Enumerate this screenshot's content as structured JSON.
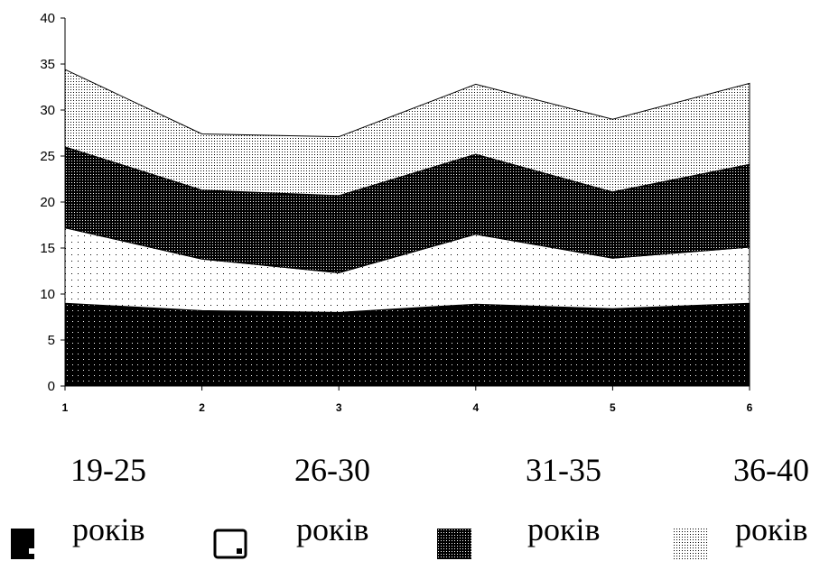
{
  "chart_data": {
    "type": "area",
    "stacked": true,
    "x": [
      "1",
      "2",
      "3",
      "4",
      "5",
      "6"
    ],
    "ylim": [
      0,
      40
    ],
    "yticks": [
      "0",
      "5",
      "10",
      "15",
      "20",
      "25",
      "30",
      "35",
      "40"
    ],
    "grid": false,
    "legend_position": "bottom",
    "series": [
      {
        "name": "19-25",
        "unit": "років",
        "values": [
          9.0,
          8.2,
          8.0,
          8.9,
          8.4,
          9.0
        ],
        "fill": "dark-dotted"
      },
      {
        "name": "26-30",
        "unit": "років",
        "values": [
          8.2,
          5.6,
          4.3,
          7.6,
          5.5,
          6.1
        ],
        "fill": "light-dotted"
      },
      {
        "name": "31-35",
        "unit": "років",
        "values": [
          8.8,
          7.5,
          8.4,
          8.7,
          7.2,
          9.0
        ],
        "fill": "dark-checker"
      },
      {
        "name": "36-40",
        "unit": "років",
        "values": [
          8.4,
          6.1,
          6.4,
          7.6,
          7.9,
          8.8
        ],
        "fill": "grey-stipple"
      }
    ]
  }
}
